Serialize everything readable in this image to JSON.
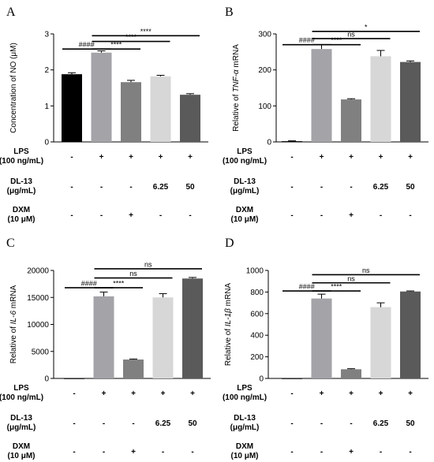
{
  "condition_labels": {
    "lps": [
      "LPS",
      "(100 ng/mL)"
    ],
    "dl13": [
      "DL-13",
      "(μg/mL)"
    ],
    "dxm": [
      "DXM",
      "(10 μM)"
    ]
  },
  "condition_marks": {
    "lps": [
      "-",
      "+",
      "+",
      "+",
      "+"
    ],
    "dl13": [
      "-",
      "-",
      "-",
      "6.25",
      "50"
    ],
    "dxm": [
      "-",
      "-",
      "+",
      "-",
      "-"
    ]
  },
  "chart_data": [
    {
      "panel": "A",
      "type": "bar",
      "ylabel": [
        "Concentration of NO (μM)"
      ],
      "ylim": [
        0,
        3
      ],
      "yticks": [
        0,
        1,
        2,
        3
      ],
      "values": [
        1.88,
        2.48,
        1.66,
        1.82,
        1.31
      ],
      "errors": [
        0.04,
        0.05,
        0.05,
        0.03,
        0.03
      ],
      "colors": [
        "#000000",
        "#a3a3a8",
        "#808080",
        "#d7d7d7",
        "#5a5a5a"
      ],
      "comparisons": [
        {
          "from": 0,
          "to": 1,
          "label": "####",
          "y": 2.58
        },
        {
          "from": 1,
          "to": 2,
          "label": "****",
          "y": 2.58
        },
        {
          "from": 1,
          "to": 3,
          "label": "****",
          "y": 2.79
        },
        {
          "from": 1,
          "to": 4,
          "label": "****",
          "y": 2.95
        }
      ]
    },
    {
      "panel": "B",
      "type": "bar",
      "ylabel": [
        "Relative of ",
        "TNF-α",
        " mRNA"
      ],
      "ylim": [
        0,
        300
      ],
      "yticks": [
        0,
        100,
        200,
        300
      ],
      "values": [
        2,
        258,
        118,
        238,
        222
      ],
      "errors": [
        1,
        12,
        2,
        16,
        3
      ],
      "colors": [
        "#000000",
        "#a3a3a8",
        "#808080",
        "#d7d7d7",
        "#5a5a5a"
      ],
      "comparisons": [
        {
          "from": 0,
          "to": 1,
          "label": "####",
          "y": 270
        },
        {
          "from": 1,
          "to": 2,
          "label": "****",
          "y": 270
        },
        {
          "from": 1,
          "to": 3,
          "label": "ns",
          "y": 287
        },
        {
          "from": 1,
          "to": 4,
          "label": "*",
          "y": 307
        }
      ]
    },
    {
      "panel": "C",
      "type": "bar",
      "ylabel": [
        "Relative of ",
        "IL-6",
        " mRNA"
      ],
      "ylim": [
        0,
        20000
      ],
      "yticks": [
        0,
        5000,
        10000,
        15000,
        20000
      ],
      "values": [
        0,
        15200,
        3500,
        15000,
        18500
      ],
      "errors": [
        0,
        800,
        100,
        700,
        200
      ],
      "colors": [
        "#000000",
        "#a3a3a8",
        "#808080",
        "#d7d7d7",
        "#5a5a5a"
      ],
      "comparisons": [
        {
          "from": 0,
          "to": 1,
          "label": "####",
          "y": 16800
        },
        {
          "from": 1,
          "to": 2,
          "label": "****",
          "y": 16800
        },
        {
          "from": 1,
          "to": 3,
          "label": "ns",
          "y": 18600
        },
        {
          "from": 1,
          "to": 4,
          "label": "ns",
          "y": 20300
        }
      ]
    },
    {
      "panel": "D",
      "type": "bar",
      "ylabel": [
        "Relative of ",
        "IL-1β",
        " mRNA"
      ],
      "ylim": [
        0,
        1000
      ],
      "yticks": [
        0,
        200,
        400,
        600,
        800,
        1000
      ],
      "values": [
        0,
        740,
        85,
        660,
        805
      ],
      "errors": [
        0,
        40,
        5,
        40,
        5
      ],
      "colors": [
        "#000000",
        "#a3a3a8",
        "#808080",
        "#d7d7d7",
        "#5a5a5a"
      ],
      "comparisons": [
        {
          "from": 0,
          "to": 1,
          "label": "####",
          "y": 810
        },
        {
          "from": 1,
          "to": 2,
          "label": "****",
          "y": 810
        },
        {
          "from": 1,
          "to": 3,
          "label": "ns",
          "y": 885
        },
        {
          "from": 1,
          "to": 4,
          "label": "ns",
          "y": 960
        }
      ]
    }
  ]
}
